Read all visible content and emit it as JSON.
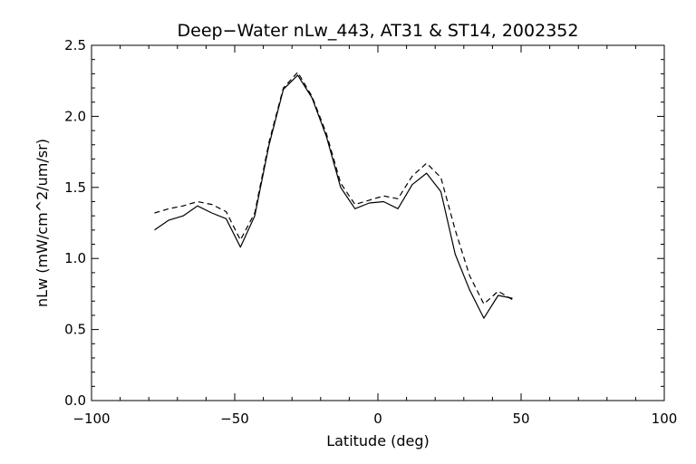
{
  "chart_data": {
    "type": "line",
    "title": "Deep−Water nLw_443, AT31 & ST14, 2002352",
    "xlabel": "Latitude (deg)",
    "ylabel": "nLw (mW/cm^2/um/sr)",
    "xlim": [
      -100,
      100
    ],
    "ylim": [
      0.0,
      2.5
    ],
    "x_ticks": [
      "−100",
      "−50",
      "0",
      "50",
      "100"
    ],
    "y_ticks": [
      "0.0",
      "0.5",
      "1.0",
      "1.5",
      "2.0",
      "2.5"
    ],
    "grid": false,
    "series": [
      {
        "style": "solid",
        "x": [
          -78,
          -73,
          -68,
          -63,
          -58,
          -53,
          -48,
          -43,
          -38,
          -33,
          -28,
          -23,
          -18,
          -13,
          -8,
          -3,
          2,
          7,
          12,
          17,
          22,
          27,
          32,
          37,
          42,
          47
        ],
        "y": [
          1.2,
          1.27,
          1.3,
          1.37,
          1.32,
          1.28,
          1.08,
          1.3,
          1.8,
          2.19,
          2.29,
          2.13,
          1.86,
          1.5,
          1.35,
          1.39,
          1.4,
          1.35,
          1.52,
          1.6,
          1.47,
          1.03,
          0.78,
          0.58,
          0.74,
          0.72
        ]
      },
      {
        "style": "dashed",
        "x": [
          -78,
          -73,
          -68,
          -63,
          -58,
          -53,
          -48,
          -43,
          -38,
          -33,
          -28,
          -23,
          -18,
          -13,
          -8,
          -3,
          2,
          7,
          12,
          17,
          22,
          27,
          32,
          37,
          42,
          47
        ],
        "y": [
          1.32,
          1.35,
          1.37,
          1.4,
          1.38,
          1.33,
          1.13,
          1.32,
          1.82,
          2.2,
          2.31,
          2.14,
          1.88,
          1.53,
          1.38,
          1.41,
          1.44,
          1.42,
          1.58,
          1.67,
          1.57,
          1.2,
          0.88,
          0.68,
          0.77,
          0.71
        ]
      }
    ]
  }
}
